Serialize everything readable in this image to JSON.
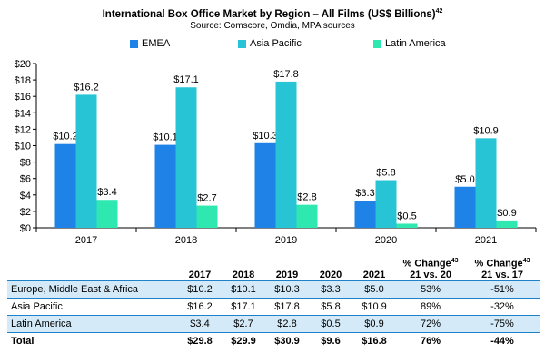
{
  "header": {
    "title": "International Box Office Market by Region – All Films (US$ Billions)",
    "title_sup": "42",
    "subtitle": "Source: Comscore, Omdia, MPA sources"
  },
  "chart_data": {
    "type": "bar",
    "categories": [
      "2017",
      "2018",
      "2019",
      "2020",
      "2021"
    ],
    "series": [
      {
        "name": "EMEA",
        "color": "#1f82e6",
        "values": [
          10.2,
          10.1,
          10.3,
          3.3,
          5.0
        ],
        "labels": [
          "$10.2",
          "$10.1",
          "$10.3",
          "$3.3",
          "$5.0"
        ]
      },
      {
        "name": "Asia Pacific",
        "color": "#27c4d6",
        "values": [
          16.2,
          17.1,
          17.8,
          5.8,
          10.9
        ],
        "labels": [
          "$16.2",
          "$17.1",
          "$17.8",
          "$5.8",
          "$10.9"
        ]
      },
      {
        "name": "Latin America",
        "color": "#2ee8b0",
        "values": [
          3.4,
          2.7,
          2.8,
          0.5,
          0.9
        ],
        "labels": [
          "$3.4",
          "$2.7",
          "$2.8",
          "$0.5",
          "$0.9"
        ]
      }
    ],
    "ylim": [
      0,
      20
    ],
    "yticks": [
      0,
      2,
      4,
      6,
      8,
      10,
      12,
      14,
      16,
      18,
      20
    ],
    "ytick_labels": [
      "$0",
      "$2",
      "$4",
      "$6",
      "$8",
      "$10",
      "$12",
      "$14",
      "$16",
      "$18",
      "$20"
    ],
    "grid": false,
    "legend_position": "top"
  },
  "table": {
    "columns": [
      "",
      "2017",
      "2018",
      "2019",
      "2020",
      "2021"
    ],
    "change1": {
      "label": "% Change",
      "sup": "43",
      "sub": "21 vs. 20"
    },
    "change2": {
      "label": "% Change",
      "sup": "43",
      "sub": "21 vs. 17"
    },
    "rows": [
      {
        "name": "Europe, Middle East & Africa",
        "v2017": "$10.2",
        "v2018": "$10.1",
        "v2019": "$10.3",
        "v2020": "$3.3",
        "v2021": "$5.0",
        "c1": "53%",
        "c2": "-51%"
      },
      {
        "name": "Asia Pacific",
        "v2017": "$16.2",
        "v2018": "$17.1",
        "v2019": "$17.8",
        "v2020": "$5.8",
        "v2021": "$10.9",
        "c1": "89%",
        "c2": "-32%"
      },
      {
        "name": "Latin America",
        "v2017": "$3.4",
        "v2018": "$2.7",
        "v2019": "$2.8",
        "v2020": "$0.5",
        "v2021": "$0.9",
        "c1": "72%",
        "c2": "-75%"
      },
      {
        "name": "Total",
        "v2017": "$29.8",
        "v2018": "$29.9",
        "v2019": "$30.9",
        "v2020": "$9.6",
        "v2021": "$16.8",
        "c1": "76%",
        "c2": "-44%"
      }
    ]
  }
}
